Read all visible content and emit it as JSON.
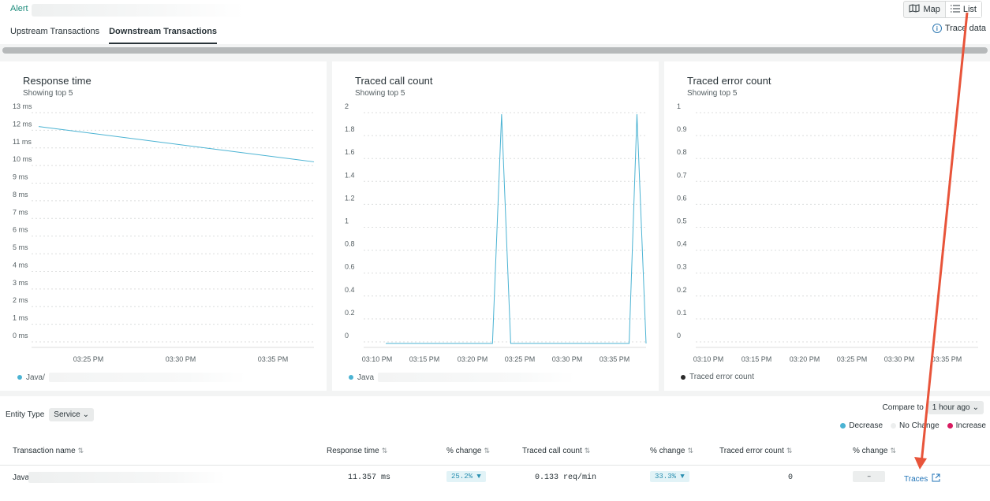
{
  "header": {
    "alert_label": "Alert",
    "tabs": [
      {
        "label": "Upstream Transactions",
        "active": false
      },
      {
        "label": "Downstream Transactions",
        "active": true
      }
    ],
    "view_toggle": {
      "map_label": "Map",
      "list_label": "List",
      "active": "List"
    },
    "trace_data_label": "Trace data"
  },
  "charts": [
    {
      "title": "Response time",
      "subtitle": "Showing top 5",
      "legend": "Java/",
      "legend_color": "#4bb3d3",
      "chart_data": {
        "type": "line",
        "title": "Response time",
        "y_ticks": [
          "13 ms",
          "12 ms",
          "11 ms",
          "10 ms",
          "9 ms",
          "8 ms",
          "7 ms",
          "6 ms",
          "5 ms",
          "4 ms",
          "3 ms",
          "2 ms",
          "1 ms",
          "0 ms"
        ],
        "ylim": [
          0,
          13
        ],
        "x_ticks": [
          "03:25 PM",
          "03:30 PM",
          "03:35 PM"
        ],
        "series": [
          {
            "values": [
              12.3,
              10.3
            ],
            "x_range": [
              0,
              1
            ]
          }
        ]
      }
    },
    {
      "title": "Traced call count",
      "subtitle": "Showing top 5",
      "legend": "Java",
      "legend_color": "#4bb3d3",
      "chart_data": {
        "type": "line",
        "title": "Traced call count",
        "y_ticks": [
          "2",
          "1.8",
          "1.6",
          "1.4",
          "1.2",
          "1",
          "0.8",
          "0.6",
          "0.4",
          "0.2",
          "0"
        ],
        "ylim": [
          0,
          2
        ],
        "x_ticks": [
          "03:10 PM",
          "03:15 PM",
          "03:20 PM",
          "03:25 PM",
          "03:30 PM",
          "03:35 PM"
        ],
        "series": [
          {
            "points": [
              [
                0,
                0
              ],
              [
                0.41,
                0
              ],
              [
                0.445,
                2
              ],
              [
                0.48,
                0
              ],
              [
                0.935,
                0
              ],
              [
                0.965,
                2
              ],
              [
                1,
                0
              ]
            ]
          }
        ]
      }
    },
    {
      "title": "Traced error count",
      "subtitle": "Showing top 5",
      "legend": "Traced error count",
      "legend_color": "#2b2b2b",
      "chart_data": {
        "type": "line",
        "title": "Traced error count",
        "y_ticks": [
          "1",
          "0.9",
          "0.8",
          "0.7",
          "0.6",
          "0.5",
          "0.4",
          "0.3",
          "0.2",
          "0.1",
          "0"
        ],
        "ylim": [
          0,
          1
        ],
        "x_ticks": [
          "03:10 PM",
          "03:15 PM",
          "03:20 PM",
          "03:25 PM",
          "03:30 PM",
          "03:35 PM"
        ],
        "series": []
      }
    }
  ],
  "filters": {
    "entity_type_label": "Entity Type",
    "entity_type_value": "Service",
    "compare_label": "Compare to",
    "compare_value": "1 hour ago"
  },
  "change_legend": [
    {
      "label": "Decrease",
      "color": "#4bb3d3"
    },
    {
      "label": "No Change",
      "color": "#eceeee"
    },
    {
      "label": "Increase",
      "color": "#d81b60"
    }
  ],
  "table": {
    "headers": [
      "Transaction name",
      "Response time",
      "% change",
      "Traced call count",
      "% change",
      "Traced error count",
      "% change"
    ],
    "rows": [
      {
        "name": "Java",
        "response_time": "11.357 ms",
        "rt_change": "25.2% ▼",
        "call_count": "0.133 req/min",
        "cc_change": "33.3% ▼",
        "error_count": "0",
        "ec_change": "–",
        "traces_label": "Traces"
      }
    ]
  }
}
